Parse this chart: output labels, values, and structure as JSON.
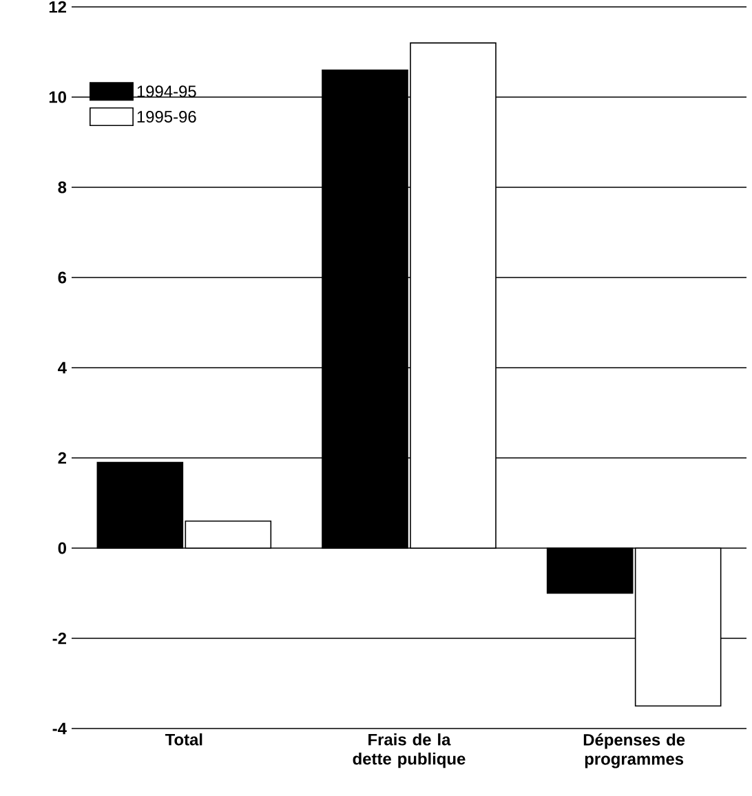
{
  "chart_data": {
    "type": "bar",
    "categories": [
      "Total",
      "Frais de la dette publique",
      "Dépenses de programmes"
    ],
    "series": [
      {
        "name": "1994-95",
        "color": "#000000",
        "values": [
          1.9,
          10.6,
          -1.0
        ]
      },
      {
        "name": "1995-96",
        "color": "#ffffff",
        "values": [
          0.6,
          11.2,
          -3.5
        ]
      }
    ],
    "ylim": [
      -4,
      12
    ],
    "yticks": [
      -4,
      -2,
      0,
      2,
      4,
      6,
      8,
      10,
      12
    ],
    "grid": "y",
    "legend": "top left"
  }
}
